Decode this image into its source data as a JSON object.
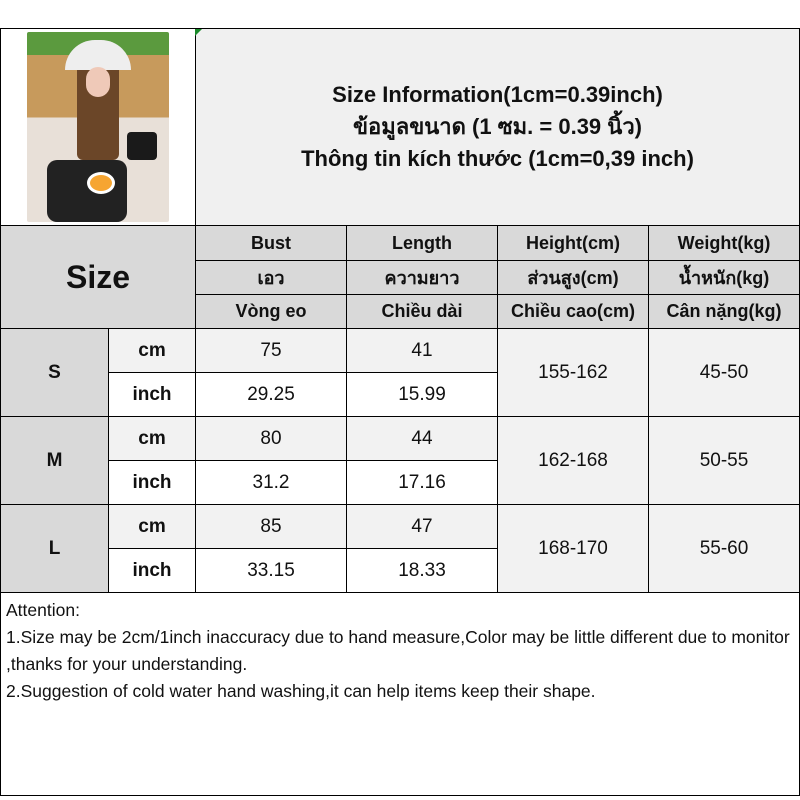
{
  "header": {
    "title_lines": [
      "Size Information(1cm=0.39inch)",
      "ข้อมูลขนาด (1 ซม. = 0.39 นิ้ว)",
      "Thông tin kích thước (1cm=0,39 inch)"
    ]
  },
  "table": {
    "size_label": "Size",
    "columns": [
      {
        "en": "Bust",
        "th": "เอว",
        "vi": "Vòng eo"
      },
      {
        "en": "Length",
        "th": "ความยาว",
        "vi": "Chiều dài"
      },
      {
        "en": "Height(cm)",
        "th": "ส่วนสูง(cm)",
        "vi": "Chiều cao(cm)"
      },
      {
        "en": "Weight(kg)",
        "th": "น้ำหนัก(kg)",
        "vi": "Cân nặng(kg)"
      }
    ],
    "units": {
      "cm": "cm",
      "inch": "inch"
    },
    "rows": [
      {
        "size": "S",
        "bust_cm": "75",
        "length_cm": "41",
        "bust_inch": "29.25",
        "length_inch": "15.99",
        "height": "155-162",
        "weight": "45-50"
      },
      {
        "size": "M",
        "bust_cm": "80",
        "length_cm": "44",
        "bust_inch": "31.2",
        "length_inch": "17.16",
        "height": "162-168",
        "weight": "50-55"
      },
      {
        "size": "L",
        "bust_cm": "85",
        "length_cm": "47",
        "bust_inch": "33.15",
        "length_inch": "18.33",
        "height": "168-170",
        "weight": "55-60"
      }
    ]
  },
  "notes": {
    "heading": "Attention:",
    "lines": [
      "1.Size may be 2cm/1inch inaccuracy due to hand measure,Color may be little different due to monitor ,thanks for your understanding.",
      "2.Suggestion of cold water hand washing,it can help items keep their shape."
    ]
  },
  "colors": {
    "header_gray": "#d9d9d9",
    "light_gray": "#f2f2f2",
    "border": "#000000"
  }
}
